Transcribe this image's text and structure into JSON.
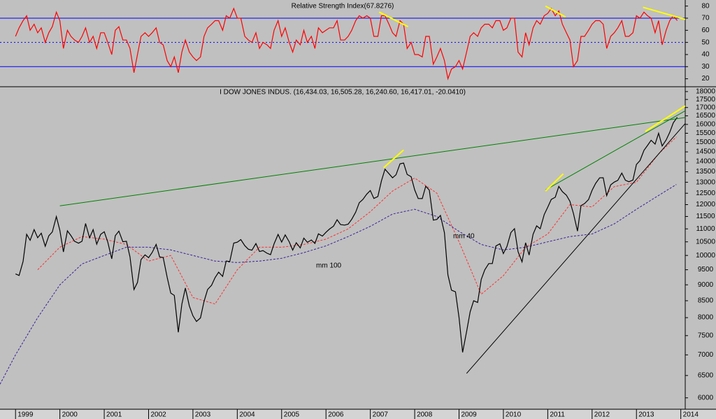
{
  "chart_data": [
    {
      "type": "line",
      "title": "Relative Strength Index(67.8276)",
      "x": [
        1999.0,
        1999.08,
        1999.17,
        1999.25,
        1999.33,
        1999.42,
        1999.5,
        1999.58,
        1999.67,
        1999.75,
        1999.83,
        1999.92,
        2000.0,
        2000.08,
        2000.17,
        2000.25,
        2000.33,
        2000.42,
        2000.5,
        2000.58,
        2000.67,
        2000.75,
        2000.83,
        2000.92,
        2001.0,
        2001.08,
        2001.17,
        2001.25,
        2001.33,
        2001.42,
        2001.5,
        2001.58,
        2001.67,
        2001.75,
        2001.83,
        2001.92,
        2002.0,
        2002.08,
        2002.17,
        2002.25,
        2002.33,
        2002.42,
        2002.5,
        2002.58,
        2002.67,
        2002.75,
        2002.83,
        2002.92,
        2003.0,
        2003.08,
        2003.17,
        2003.25,
        2003.33,
        2003.42,
        2003.5,
        2003.58,
        2003.67,
        2003.75,
        2003.83,
        2003.92,
        2004.0,
        2004.08,
        2004.17,
        2004.25,
        2004.33,
        2004.42,
        2004.5,
        2004.58,
        2004.67,
        2004.75,
        2004.83,
        2004.92,
        2005.0,
        2005.08,
        2005.17,
        2005.25,
        2005.33,
        2005.42,
        2005.5,
        2005.58,
        2005.67,
        2005.75,
        2005.83,
        2005.92,
        2006.0,
        2006.08,
        2006.17,
        2006.25,
        2006.33,
        2006.42,
        2006.5,
        2006.58,
        2006.67,
        2006.75,
        2006.83,
        2006.92,
        2007.0,
        2007.08,
        2007.17,
        2007.25,
        2007.33,
        2007.42,
        2007.5,
        2007.58,
        2007.67,
        2007.75,
        2007.83,
        2007.92,
        2008.0,
        2008.08,
        2008.17,
        2008.25,
        2008.33,
        2008.42,
        2008.5,
        2008.58,
        2008.67,
        2008.75,
        2008.83,
        2008.92,
        2009.0,
        2009.08,
        2009.17,
        2009.25,
        2009.33,
        2009.42,
        2009.5,
        2009.58,
        2009.67,
        2009.75,
        2009.83,
        2009.92,
        2010.0,
        2010.08,
        2010.17,
        2010.25,
        2010.33,
        2010.42,
        2010.5,
        2010.58,
        2010.67,
        2010.75,
        2010.83,
        2010.92,
        2011.0,
        2011.08,
        2011.17,
        2011.25,
        2011.33,
        2011.42,
        2011.5,
        2011.58,
        2011.67,
        2011.75,
        2011.83,
        2011.92,
        2012.0,
        2012.08,
        2012.17,
        2012.25,
        2012.33,
        2012.42,
        2012.5,
        2012.58,
        2012.67,
        2012.75,
        2012.83,
        2012.92,
        2013.0,
        2013.08,
        2013.17,
        2013.25,
        2013.33,
        2013.42,
        2013.5,
        2013.58,
        2013.67,
        2013.75,
        2013.83,
        2013.92
      ],
      "series": [
        {
          "color": "#ff0000",
          "values": [
            55,
            62,
            68,
            72,
            60,
            65,
            58,
            62,
            50,
            58,
            63,
            75,
            68,
            45,
            60,
            55,
            52,
            50,
            55,
            62,
            50,
            55,
            45,
            58,
            58,
            50,
            40,
            60,
            63,
            52,
            52,
            45,
            25,
            40,
            55,
            58,
            55,
            58,
            62,
            50,
            48,
            35,
            30,
            38,
            25,
            42,
            52,
            42,
            38,
            35,
            38,
            55,
            62,
            65,
            68,
            68,
            60,
            72,
            70,
            78,
            70,
            70,
            55,
            52,
            50,
            58,
            45,
            50,
            48,
            45,
            60,
            68,
            55,
            62,
            50,
            42,
            52,
            48,
            60,
            50,
            55,
            45,
            62,
            58,
            60,
            62,
            62,
            68,
            52,
            52,
            55,
            60,
            68,
            72,
            70,
            72,
            70,
            55,
            55,
            72,
            72,
            65,
            58,
            55,
            68,
            65,
            45,
            50,
            40,
            40,
            38,
            55,
            55,
            32,
            38,
            45,
            35,
            20,
            28,
            30,
            35,
            28,
            42,
            55,
            58,
            55,
            62,
            65,
            65,
            62,
            68,
            68,
            60,
            62,
            70,
            70,
            42,
            38,
            58,
            48,
            62,
            68,
            65,
            72,
            74,
            78,
            72,
            76,
            65,
            58,
            52,
            30,
            35,
            55,
            55,
            60,
            65,
            68,
            68,
            65,
            45,
            55,
            58,
            62,
            68,
            55,
            55,
            58,
            72,
            70,
            75,
            72,
            70,
            58,
            68,
            48,
            60,
            68,
            72,
            68
          ]
        }
      ],
      "levels": [
        {
          "value": 70,
          "style": "solid"
        },
        {
          "value": 50,
          "style": "dotted"
        },
        {
          "value": 30,
          "style": "solid"
        }
      ],
      "level_color": "#0000ff",
      "trendlines": [
        {
          "color": "#ffff00",
          "x": [
            2007.2,
            2007.85
          ],
          "values": [
            75,
            63
          ]
        },
        {
          "color": "#ffff00",
          "x": [
            2010.95,
            2011.4
          ],
          "values": [
            80,
            71
          ]
        },
        {
          "color": "#ffff00",
          "x": [
            2013.15,
            2014.1
          ],
          "values": [
            79,
            69
          ]
        }
      ],
      "xlim": [
        1998.65,
        2014.1
      ],
      "ylim": [
        14,
        85
      ],
      "yticks": [
        20,
        30,
        40,
        50,
        60,
        70,
        80
      ]
    },
    {
      "type": "line",
      "title": "I DOW JONES INDUS. (16,434.03, 16,505.28, 16,240.60, 16,417.01, -20.0410)",
      "x": [
        1999.0,
        1999.08,
        1999.17,
        1999.25,
        1999.33,
        1999.42,
        1999.5,
        1999.58,
        1999.67,
        1999.75,
        1999.83,
        1999.92,
        2000.0,
        2000.08,
        2000.17,
        2000.25,
        2000.33,
        2000.42,
        2000.5,
        2000.58,
        2000.67,
        2000.75,
        2000.83,
        2000.92,
        2001.0,
        2001.08,
        2001.17,
        2001.25,
        2001.33,
        2001.42,
        2001.5,
        2001.58,
        2001.67,
        2001.75,
        2001.83,
        2001.92,
        2002.0,
        2002.08,
        2002.17,
        2002.25,
        2002.33,
        2002.42,
        2002.5,
        2002.58,
        2002.67,
        2002.75,
        2002.83,
        2002.92,
        2003.0,
        2003.08,
        2003.17,
        2003.25,
        2003.33,
        2003.42,
        2003.5,
        2003.58,
        2003.67,
        2003.75,
        2003.83,
        2003.92,
        2004.0,
        2004.08,
        2004.17,
        2004.25,
        2004.33,
        2004.42,
        2004.5,
        2004.58,
        2004.67,
        2004.75,
        2004.83,
        2004.92,
        2005.0,
        2005.08,
        2005.17,
        2005.25,
        2005.33,
        2005.42,
        2005.5,
        2005.58,
        2005.67,
        2005.75,
        2005.83,
        2005.92,
        2006.0,
        2006.08,
        2006.17,
        2006.25,
        2006.33,
        2006.42,
        2006.5,
        2006.58,
        2006.67,
        2006.75,
        2006.83,
        2006.92,
        2007.0,
        2007.08,
        2007.17,
        2007.25,
        2007.33,
        2007.42,
        2007.5,
        2007.58,
        2007.67,
        2007.75,
        2007.83,
        2007.92,
        2008.0,
        2008.08,
        2008.17,
        2008.25,
        2008.33,
        2008.42,
        2008.5,
        2008.58,
        2008.67,
        2008.75,
        2008.83,
        2008.92,
        2009.0,
        2009.08,
        2009.17,
        2009.25,
        2009.33,
        2009.42,
        2009.5,
        2009.58,
        2009.67,
        2009.75,
        2009.83,
        2009.92,
        2010.0,
        2010.08,
        2010.17,
        2010.25,
        2010.33,
        2010.42,
        2010.5,
        2010.58,
        2010.67,
        2010.75,
        2010.83,
        2010.92,
        2011.0,
        2011.08,
        2011.17,
        2011.25,
        2011.33,
        2011.42,
        2011.5,
        2011.58,
        2011.67,
        2011.75,
        2011.83,
        2011.92,
        2012.0,
        2012.08,
        2012.17,
        2012.25,
        2012.33,
        2012.42,
        2012.5,
        2012.58,
        2012.67,
        2012.75,
        2012.83,
        2012.92,
        2013.0,
        2013.08,
        2013.17,
        2013.25,
        2013.33,
        2013.42,
        2013.5,
        2013.58,
        2013.67,
        2013.75,
        2013.83,
        2013.92
      ],
      "series": [
        {
          "color": "#000000",
          "values": [
            9359,
            9307,
            9786,
            10789,
            10560,
            10971,
            10655,
            10829,
            10337,
            10729,
            10878,
            11497,
            10941,
            10128,
            10922,
            10734,
            10522,
            10448,
            10522,
            11215,
            10651,
            10971,
            10415,
            10787,
            10887,
            10495,
            9879,
            10735,
            10912,
            10502,
            10523,
            9950,
            8848,
            9075,
            9852,
            10022,
            9920,
            10106,
            10404,
            9946,
            9925,
            9243,
            8737,
            8664,
            7592,
            8397,
            8896,
            8342,
            8054,
            7891,
            7992,
            8480,
            8850,
            8985,
            9234,
            9416,
            9275,
            9801,
            9782,
            10454,
            10488,
            10584,
            10358,
            10226,
            10188,
            10435,
            10140,
            10174,
            10080,
            10027,
            10428,
            10783,
            10490,
            10766,
            10504,
            10193,
            10467,
            10275,
            10641,
            10482,
            10569,
            10440,
            10806,
            10718,
            10865,
            10993,
            11109,
            11367,
            11168,
            11150,
            11186,
            11381,
            11679,
            12081,
            12222,
            12463,
            12622,
            12269,
            12354,
            13063,
            13628,
            13409,
            13212,
            13358,
            13896,
            13930,
            13372,
            13265,
            12650,
            12266,
            12263,
            12820,
            12638,
            11350,
            11378,
            11544,
            10851,
            9325,
            8829,
            8776,
            8001,
            7063,
            7609,
            8168,
            8500,
            8447,
            9172,
            9496,
            9712,
            9713,
            10345,
            10428,
            10067,
            10325,
            10857,
            11009,
            10137,
            9774,
            10466,
            10015,
            10788,
            11118,
            11006,
            11578,
            11892,
            12226,
            12320,
            12811,
            12570,
            12414,
            12143,
            11614,
            10913,
            11955,
            12046,
            12218,
            12633,
            12952,
            13212,
            13214,
            12393,
            12880,
            13009,
            13091,
            13437,
            13096,
            13026,
            13104,
            13861,
            14054,
            14579,
            14840,
            15116,
            14910,
            15500,
            14810,
            15130,
            15546,
            16086,
            16417
          ]
        }
      ],
      "moving_averages": [
        {
          "name": "mm 40",
          "color": "#ff3030",
          "x": [
            1999.5,
            2000.0,
            2000.5,
            2001.0,
            2001.5,
            2002.0,
            2002.5,
            2003.0,
            2003.5,
            2004.0,
            2004.5,
            2005.0,
            2005.5,
            2006.0,
            2006.5,
            2007.0,
            2007.5,
            2008.0,
            2008.5,
            2009.0,
            2009.5,
            2010.0,
            2010.5,
            2011.0,
            2011.5,
            2012.0,
            2012.5,
            2013.0,
            2013.5,
            2013.9
          ],
          "values": [
            9500,
            10300,
            10700,
            10600,
            10400,
            9800,
            10000,
            8600,
            8400,
            9500,
            10300,
            10300,
            10400,
            10600,
            11000,
            11700,
            12600,
            13200,
            12500,
            10500,
            8700,
            9300,
            10300,
            10800,
            12000,
            11900,
            12800,
            13000,
            14400,
            15300
          ]
        },
        {
          "name": "mm 100",
          "color": "#3a1f9a",
          "x": [
            1998.65,
            1999.0,
            1999.5,
            2000.0,
            2000.5,
            2001.0,
            2001.5,
            2002.0,
            2002.5,
            2003.0,
            2003.5,
            2004.0,
            2004.5,
            2005.0,
            2005.5,
            2006.0,
            2006.5,
            2007.0,
            2007.5,
            2008.0,
            2008.5,
            2009.0,
            2009.5,
            2010.0,
            2010.5,
            2011.0,
            2011.5,
            2012.0,
            2012.5,
            2013.0,
            2013.5,
            2013.9
          ],
          "values": [
            6300,
            7000,
            8000,
            9000,
            9700,
            10000,
            10300,
            10300,
            10200,
            10000,
            9800,
            9750,
            9800,
            9900,
            10100,
            10350,
            10700,
            11100,
            11600,
            11800,
            11500,
            10900,
            10400,
            10200,
            10300,
            10500,
            10700,
            10800,
            11200,
            11800,
            12400,
            12900
          ]
        }
      ],
      "trendlines": [
        {
          "color": "#008000",
          "x": [
            2000.0,
            2014.1
          ],
          "values": [
            11950,
            16400
          ]
        },
        {
          "color": "#008000",
          "x": [
            2010.95,
            2014.1
          ],
          "values": [
            12650,
            16800
          ]
        },
        {
          "color": "#000000",
          "x": [
            2009.17,
            2014.1
          ],
          "values": [
            6550,
            16050
          ]
        },
        {
          "color": "#ffff00",
          "x": [
            2007.3,
            2007.75
          ],
          "values": [
            13700,
            14600
          ]
        },
        {
          "color": "#ffff00",
          "x": [
            2010.95,
            2011.35
          ],
          "values": [
            12600,
            13400
          ]
        },
        {
          "color": "#ffff00",
          "x": [
            2013.2,
            2014.1
          ],
          "values": [
            15600,
            17100
          ]
        }
      ],
      "log_scale": true,
      "xlim": [
        1998.65,
        2014.1
      ],
      "xticks": [
        1999,
        2000,
        2001,
        2002,
        2003,
        2004,
        2005,
        2006,
        2007,
        2008,
        2009,
        2010,
        2011,
        2012,
        2013,
        2014
      ],
      "ylim": [
        5760,
        18270
      ],
      "yticks": [
        6000,
        6500,
        7000,
        7500,
        8000,
        8500,
        9000,
        9500,
        10000,
        10500,
        11000,
        11500,
        12000,
        12500,
        13000,
        13500,
        14000,
        14500,
        15000,
        15500,
        16000,
        16500,
        17000,
        17500,
        18000
      ]
    }
  ]
}
